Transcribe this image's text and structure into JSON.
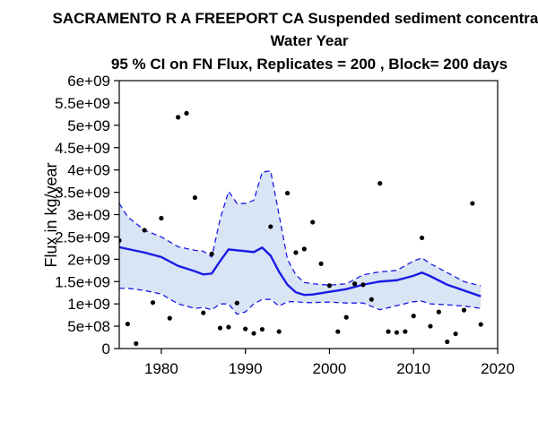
{
  "chart_data": {
    "type": "line",
    "title_lines": [
      "SACRAMENTO R A FREEPORT CA   Suspended sediment concentration",
      "Water Year",
      "95 % CI on FN Flux, Replicates = 200 , Block= 200 days"
    ],
    "xlabel": "",
    "ylabel": "Flux in kg/year",
    "xlim": [
      1975,
      2020
    ],
    "ylim": [
      0,
      6000000000
    ],
    "x_ticks": [
      1980,
      1990,
      2000,
      2010,
      2020
    ],
    "y_ticks": [
      {
        "value": 0,
        "label": "0"
      },
      {
        "value": 500000000,
        "label": "5e+08"
      },
      {
        "value": 1000000000,
        "label": "1e+09"
      },
      {
        "value": 1500000000,
        "label": "1.5e+09"
      },
      {
        "value": 2000000000,
        "label": "2e+09"
      },
      {
        "value": 2500000000,
        "label": "2.5e+09"
      },
      {
        "value": 3000000000,
        "label": "3e+09"
      },
      {
        "value": 3500000000,
        "label": "3.5e+09"
      },
      {
        "value": 4000000000,
        "label": "4e+09"
      },
      {
        "value": 4500000000,
        "label": "4.5e+09"
      },
      {
        "value": 5000000000,
        "label": "5e+09"
      },
      {
        "value": 5500000000,
        "label": "5.5e+09"
      },
      {
        "value": 6000000000,
        "label": "6e+09"
      }
    ],
    "grid": false,
    "colors": {
      "line": "#1a1ae6",
      "band_fill": "#d9e4f5",
      "band_edge": "#1a1ae6",
      "points": "#000000"
    },
    "series": [
      {
        "type": "line",
        "x": [
          1975,
          1976,
          1978,
          1980,
          1982,
          1984,
          1985,
          1986,
          1987,
          1988,
          1990,
          1991,
          1992,
          1993,
          1994,
          1995,
          1996,
          1997,
          1998,
          2000,
          2002,
          2004,
          2006,
          2008,
          2010,
          2011,
          2012,
          2014,
          2016,
          2018
        ],
        "y": [
          2270000000,
          2230000000,
          2150000000,
          2050000000,
          1850000000,
          1730000000,
          1660000000,
          1680000000,
          1960000000,
          2220000000,
          2180000000,
          2160000000,
          2260000000,
          2080000000,
          1720000000,
          1430000000,
          1260000000,
          1200000000,
          1210000000,
          1270000000,
          1330000000,
          1430000000,
          1500000000,
          1530000000,
          1630000000,
          1700000000,
          1620000000,
          1430000000,
          1300000000,
          1170000000
        ]
      },
      {
        "type": "band",
        "x": [
          1975,
          1976,
          1978,
          1980,
          1982,
          1984,
          1985,
          1986,
          1987,
          1988,
          1989,
          1990,
          1991,
          1992,
          1993,
          1994,
          1995,
          1996,
          1997,
          1998,
          2000,
          2002,
          2004,
          2006,
          2008,
          2010,
          2011,
          2012,
          2014,
          2016,
          2018
        ],
        "upper": [
          3250000000,
          2950000000,
          2650000000,
          2500000000,
          2280000000,
          2200000000,
          2180000000,
          2050000000,
          2900000000,
          3520000000,
          3250000000,
          3250000000,
          3320000000,
          3950000000,
          3980000000,
          3000000000,
          2000000000,
          1650000000,
          1480000000,
          1450000000,
          1420000000,
          1450000000,
          1650000000,
          1720000000,
          1750000000,
          1960000000,
          2030000000,
          1900000000,
          1700000000,
          1500000000,
          1400000000
        ],
        "lower": [
          1350000000,
          1350000000,
          1300000000,
          1220000000,
          1000000000,
          900000000,
          920000000,
          870000000,
          1000000000,
          1000000000,
          770000000,
          820000000,
          1000000000,
          1100000000,
          1100000000,
          950000000,
          1050000000,
          1050000000,
          1030000000,
          1030000000,
          1040000000,
          1020000000,
          1020000000,
          870000000,
          960000000,
          1050000000,
          1060000000,
          1000000000,
          980000000,
          950000000,
          900000000
        ]
      },
      {
        "type": "scatter",
        "points": [
          [
            1975,
            2420000000
          ],
          [
            1976,
            550000000
          ],
          [
            1977,
            110000000
          ],
          [
            1978,
            2650000000
          ],
          [
            1979,
            1030000000
          ],
          [
            1980,
            2920000000
          ],
          [
            1981,
            680000000
          ],
          [
            1982,
            5180000000
          ],
          [
            1983,
            5270000000
          ],
          [
            1984,
            3380000000
          ],
          [
            1985,
            800000000
          ],
          [
            1986,
            2120000000
          ],
          [
            1987,
            460000000
          ],
          [
            1988,
            480000000
          ],
          [
            1989,
            1020000000
          ],
          [
            1990,
            440000000
          ],
          [
            1991,
            340000000
          ],
          [
            1992,
            430000000
          ],
          [
            1993,
            2730000000
          ],
          [
            1994,
            380000000
          ],
          [
            1995,
            3480000000
          ],
          [
            1996,
            2150000000
          ],
          [
            1997,
            2230000000
          ],
          [
            1998,
            2830000000
          ],
          [
            1999,
            1900000000
          ],
          [
            2000,
            1410000000
          ],
          [
            2001,
            380000000
          ],
          [
            2002,
            700000000
          ],
          [
            2003,
            1450000000
          ],
          [
            2004,
            1430000000
          ],
          [
            2005,
            1100000000
          ],
          [
            2006,
            3700000000
          ],
          [
            2007,
            380000000
          ],
          [
            2008,
            360000000
          ],
          [
            2009,
            380000000
          ],
          [
            2010,
            730000000
          ],
          [
            2011,
            2480000000
          ],
          [
            2012,
            500000000
          ],
          [
            2013,
            820000000
          ],
          [
            2014,
            150000000
          ],
          [
            2015,
            330000000
          ],
          [
            2016,
            860000000
          ],
          [
            2017,
            3250000000
          ],
          [
            2018,
            540000000
          ]
        ]
      }
    ]
  }
}
